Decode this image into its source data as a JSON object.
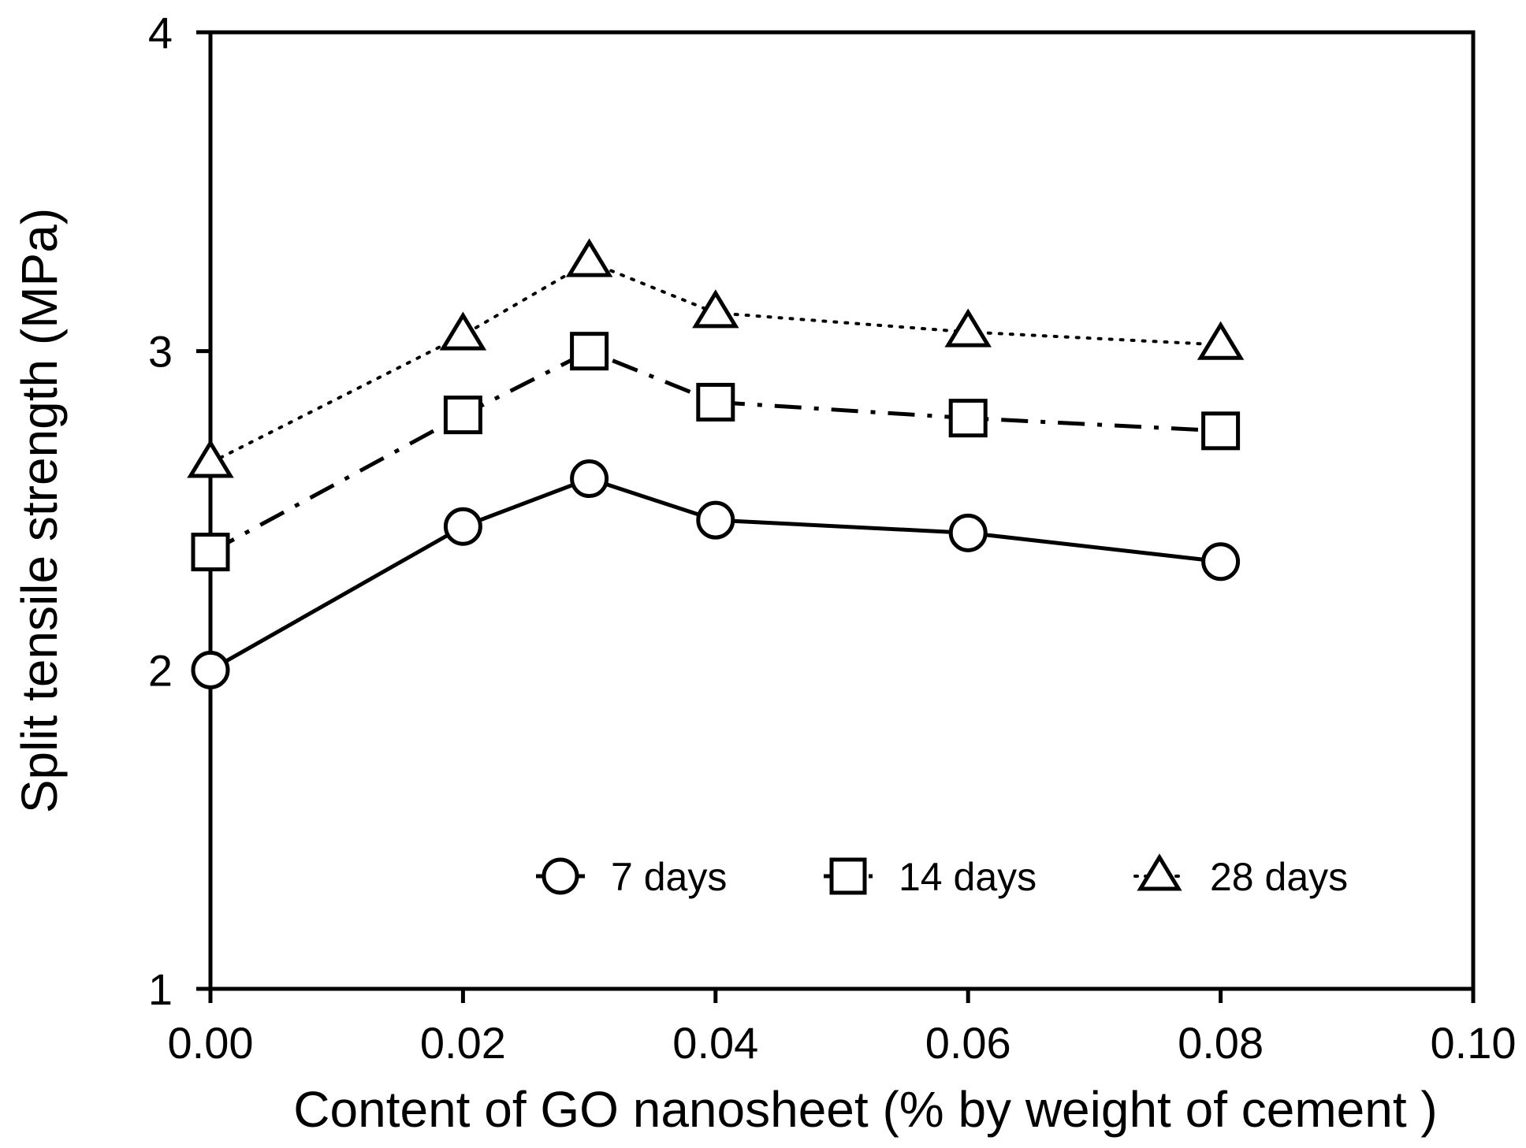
{
  "chart_data": {
    "type": "line",
    "title": "",
    "xlabel": "Content of GO nanosheet (% by weight of cement )",
    "ylabel": "Split tensile strength (MPa)",
    "xlim": [
      0,
      0.1
    ],
    "ylim": [
      1,
      4
    ],
    "xticks": [
      0,
      0.02,
      0.04,
      0.06,
      0.08,
      0.1
    ],
    "xtick_labels": [
      "0.00",
      "0.02",
      "0.04",
      "0.06",
      "0.08",
      "0.10"
    ],
    "yticks": [
      1,
      2,
      3,
      4
    ],
    "ytick_labels": [
      "1",
      "2",
      "3",
      "4"
    ],
    "grid": false,
    "legend_position": "bottom-center",
    "x": [
      0,
      0.02,
      0.03,
      0.04,
      0.06,
      0.08
    ],
    "series": [
      {
        "name": "7 days",
        "marker": "circle",
        "line_style": "solid",
        "values": [
          2.0,
          2.45,
          2.6,
          2.47,
          2.43,
          2.34
        ]
      },
      {
        "name": "14 days",
        "marker": "square",
        "line_style": "dash-dot",
        "values": [
          2.37,
          2.8,
          3.0,
          2.84,
          2.79,
          2.75
        ]
      },
      {
        "name": "28 days",
        "marker": "triangle",
        "line_style": "dotted",
        "values": [
          2.65,
          3.05,
          3.28,
          3.12,
          3.06,
          3.02
        ]
      }
    ],
    "colors": {
      "line": "#000000",
      "marker_fill": "#ffffff",
      "background": "#ffffff"
    }
  }
}
